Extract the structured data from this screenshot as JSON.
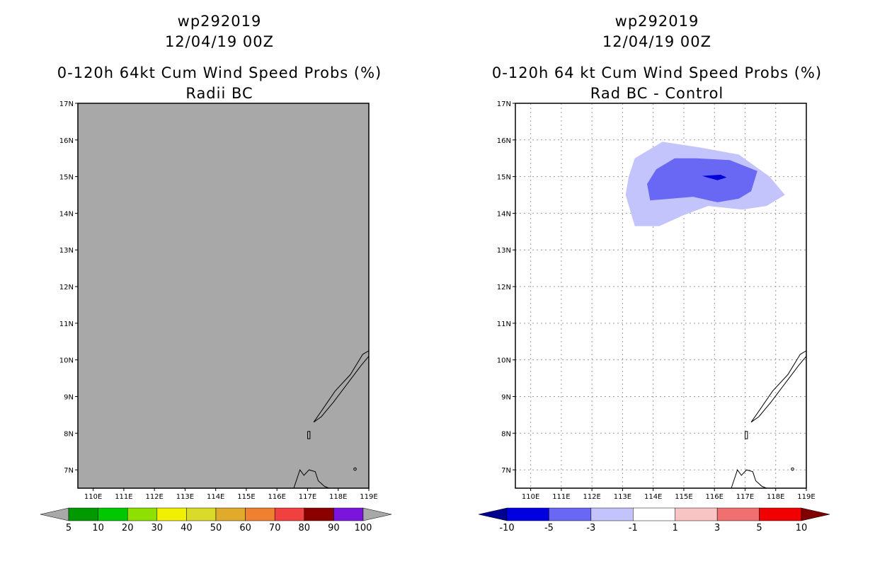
{
  "chart_data": [
    {
      "type": "heatmap",
      "storm_id": "wp292019",
      "date": "12/04/19 00Z",
      "title": "0-120h 64kt Cum Wind Speed Probs (%)",
      "subtitle": "Radii BC",
      "lon_ticks": [
        "110E",
        "111E",
        "112E",
        "113E",
        "114E",
        "115E",
        "116E",
        "117E",
        "118E",
        "119E"
      ],
      "lat_ticks": [
        "17N",
        "16N",
        "15N",
        "14N",
        "13N",
        "12N",
        "11N",
        "10N",
        "9N",
        "8N",
        "7N"
      ],
      "xlim": [
        109.5,
        119
      ],
      "ylim": [
        6.5,
        17
      ],
      "field": "uniform below 5% (no shaded probability)",
      "fill_color": "#a8a8a8",
      "colorbar": {
        "labels": [
          "5",
          "10",
          "20",
          "30",
          "40",
          "50",
          "60",
          "70",
          "80",
          "90",
          "100"
        ],
        "colors": [
          "#009a00",
          "#00c800",
          "#8ee000",
          "#f0f000",
          "#dada2a",
          "#e0aa2a",
          "#ee8030",
          "#f04040",
          "#8a0000",
          "#7a16dc"
        ],
        "end_color": "#a8a8a8"
      }
    },
    {
      "type": "heatmap",
      "storm_id": "wp292019",
      "date": "12/04/19 00Z",
      "title": "0-120h 64 kt Cum Wind Speed Probs (%)",
      "subtitle": "Rad BC - Control",
      "lon_ticks": [
        "110E",
        "111E",
        "112E",
        "113E",
        "114E",
        "115E",
        "116E",
        "117E",
        "118E",
        "119E"
      ],
      "lat_ticks": [
        "17N",
        "16N",
        "15N",
        "14N",
        "13N",
        "12N",
        "11N",
        "10N",
        "9N",
        "8N",
        "7N"
      ],
      "xlim": [
        109.5,
        119
      ],
      "ylim": [
        6.5,
        17
      ],
      "grid": true,
      "contours": [
        {
          "level": "-3 to -1",
          "color": "#c4c4fc",
          "lon": [
            113.4,
            114.3,
            115.5,
            116.8,
            117.8,
            118.3,
            117.7,
            116.9,
            115.8,
            115.0,
            114.2,
            113.4,
            113.1,
            113.2
          ],
          "lat": [
            15.5,
            15.95,
            15.8,
            15.6,
            15.0,
            14.5,
            14.2,
            14.1,
            14.2,
            13.95,
            13.65,
            13.65,
            14.5,
            15.0
          ]
        },
        {
          "level": "-5 to -3",
          "color": "#6868f4",
          "lon": [
            114.1,
            114.7,
            115.4,
            116.5,
            117.4,
            117.2,
            116.8,
            116.1,
            115.3,
            114.6,
            113.9,
            113.8
          ],
          "lat": [
            15.2,
            15.5,
            15.5,
            15.45,
            15.15,
            14.6,
            14.4,
            14.3,
            14.45,
            14.4,
            14.35,
            14.8
          ]
        },
        {
          "level": "-10 to -5",
          "color": "#0000d8",
          "lon": [
            115.6,
            116.2,
            116.4,
            116.1,
            115.8
          ],
          "lat": [
            15.02,
            15.05,
            14.98,
            14.9,
            14.97
          ]
        }
      ],
      "colorbar": {
        "labels": [
          "-10",
          "-5",
          "-3",
          "-1",
          "1",
          "3",
          "5",
          "10"
        ],
        "colors": [
          "#0000e0",
          "#6868f4",
          "#c4c4fc",
          "#ffffff",
          "#f8c4c4",
          "#f07070",
          "#f00000"
        ],
        "low_color": "#000090",
        "high_color": "#800000"
      }
    }
  ]
}
